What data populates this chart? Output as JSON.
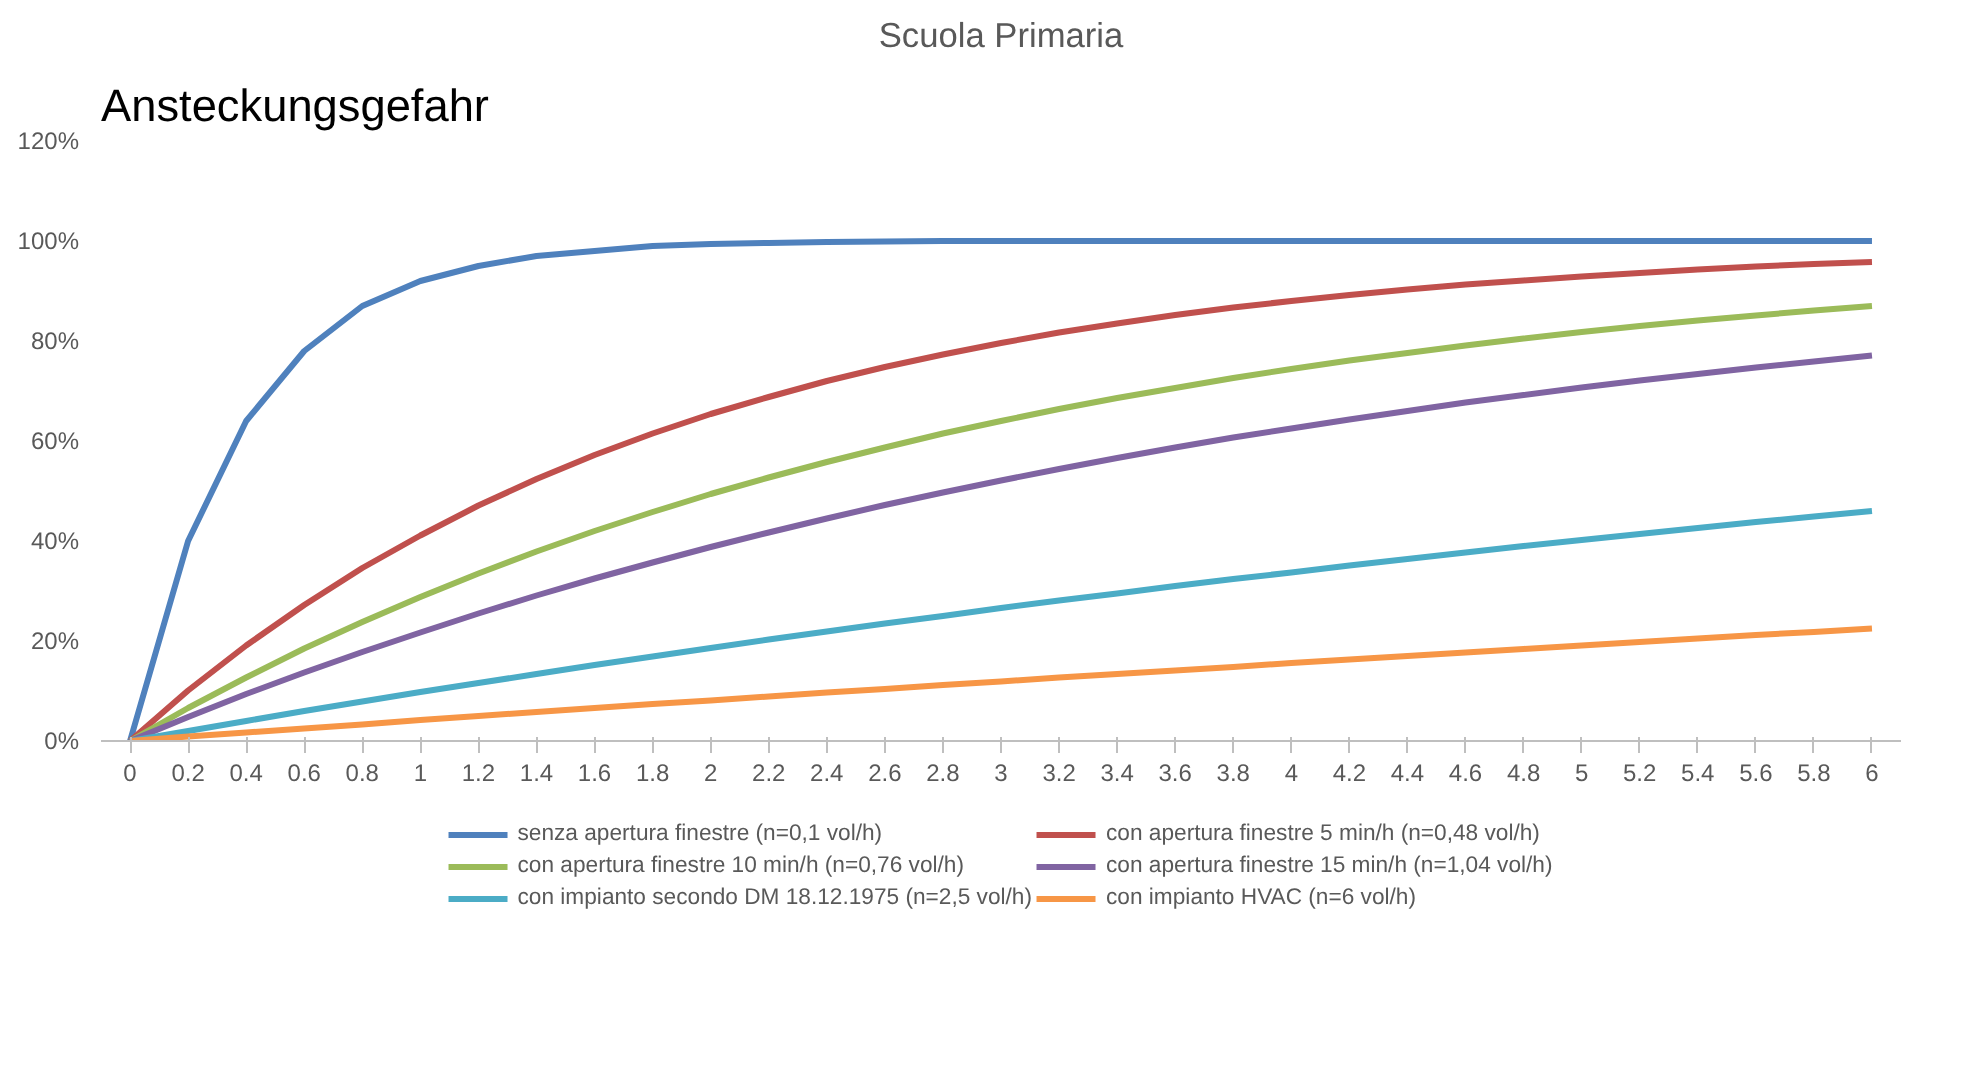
{
  "chart_data": {
    "type": "line",
    "title": "Scuola Primaria",
    "ylabel": "Ansteckungsgefahr",
    "categories": [
      "0",
      "0.2",
      "0.4",
      "0.6",
      "0.8",
      "1",
      "1.2",
      "1.4",
      "1.6",
      "1.8",
      "2",
      "2.2",
      "2.4",
      "2.6",
      "2.8",
      "3",
      "3.2",
      "3.4",
      "3.6",
      "3.8",
      "4",
      "4.2",
      "4.4",
      "4.6",
      "4.8",
      "5",
      "5.2",
      "5.4",
      "5.6",
      "5.8",
      "6"
    ],
    "series": [
      {
        "name": "senza apertura finestre (n=0,1 vol/h)",
        "color": "#4f81bd",
        "values": [
          0,
          40,
          64,
          78,
          87,
          92,
          95,
          97,
          98,
          99,
          99.4,
          99.6,
          99.8,
          99.9,
          100,
          100,
          100,
          100,
          100,
          100,
          100,
          100,
          100,
          100,
          100,
          100,
          100,
          100,
          100,
          100,
          100
        ]
      },
      {
        "name": "con apertura finestre 5 min/h (n=0,48 vol/h)",
        "color": "#c0504d",
        "values": [
          0,
          10.1,
          19.1,
          27.2,
          34.6,
          41.1,
          47.1,
          52.4,
          57.2,
          61.5,
          65.4,
          68.8,
          72,
          74.8,
          77.3,
          79.6,
          81.7,
          83.5,
          85.2,
          86.7,
          88,
          89.2,
          90.3,
          91.3,
          92.1,
          92.9,
          93.6,
          94.3,
          94.9,
          95.4,
          95.8
        ]
      },
      {
        "name": "con apertura finestre 10 min/h (n=0,76 vol/h)",
        "color": "#9bbb59",
        "values": [
          0,
          6.6,
          12.7,
          18.5,
          23.8,
          28.8,
          33.5,
          37.9,
          42,
          45.8,
          49.4,
          52.7,
          55.8,
          58.7,
          61.5,
          64,
          66.4,
          68.6,
          70.6,
          72.6,
          74.4,
          76.1,
          77.6,
          79.1,
          80.5,
          81.8,
          83,
          84.1,
          85.1,
          86.1,
          87
        ]
      },
      {
        "name": "con apertura finestre 15 min/h (n=1,04 vol/h)",
        "color": "#8064a2",
        "values": [
          0,
          4.8,
          9.4,
          13.7,
          17.8,
          21.7,
          25.5,
          29.1,
          32.5,
          35.7,
          38.8,
          41.7,
          44.5,
          47.2,
          49.7,
          52.1,
          54.4,
          56.6,
          58.7,
          60.7,
          62.5,
          64.3,
          66,
          67.7,
          69.2,
          70.7,
          72.1,
          73.4,
          74.7,
          75.9,
          77.1
        ]
      },
      {
        "name": "con impianto secondo DM 18.12.1975 (n=2,5 vol/h)",
        "color": "#4bacc6",
        "values": [
          0,
          2,
          4,
          6,
          7.9,
          9.8,
          11.6,
          13.4,
          15.2,
          16.9,
          18.6,
          20.3,
          21.9,
          23.5,
          25,
          26.6,
          28.1,
          29.5,
          31,
          32.4,
          33.7,
          35.1,
          36.4,
          37.7,
          39,
          40.2,
          41.4,
          42.6,
          43.8,
          44.9,
          46
        ]
      },
      {
        "name": "con impianto HVAC (n=6 vol/h)",
        "color": "#f79646",
        "values": [
          0,
          0.9,
          1.7,
          2.5,
          3.3,
          4.2,
          5,
          5.8,
          6.6,
          7.4,
          8.1,
          8.9,
          9.7,
          10.4,
          11.2,
          11.9,
          12.7,
          13.4,
          14.1,
          14.8,
          15.6,
          16.3,
          17,
          17.7,
          18.4,
          19.1,
          19.8,
          20.5,
          21.2,
          21.8,
          22.5
        ]
      }
    ],
    "ylim": [
      0,
      120
    ],
    "yticks": [
      {
        "value": 0,
        "label": "0%"
      },
      {
        "value": 20,
        "label": "20%"
      },
      {
        "value": 40,
        "label": "40%"
      },
      {
        "value": 60,
        "label": "60%"
      },
      {
        "value": 80,
        "label": "80%"
      },
      {
        "value": 100,
        "label": "100%"
      },
      {
        "value": 120,
        "label": "120%"
      }
    ],
    "grid": false,
    "legend": "bottom",
    "marker": "none",
    "line_style": "solid"
  }
}
